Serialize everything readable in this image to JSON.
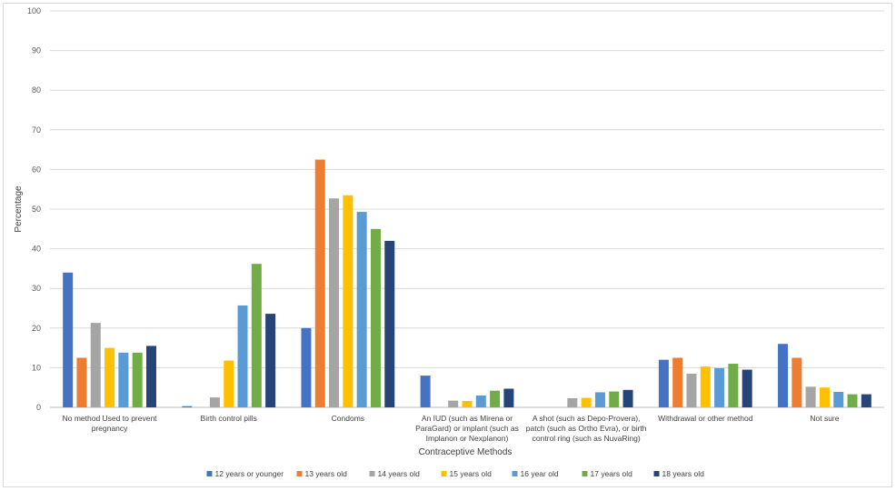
{
  "chart_data": {
    "type": "bar",
    "title": "",
    "xlabel": "Contraceptive Methods",
    "ylabel": "Percentage",
    "ylim": [
      0,
      100
    ],
    "yticks": [
      0,
      10,
      20,
      30,
      40,
      50,
      60,
      70,
      80,
      90,
      100
    ],
    "grid": true,
    "legend_position": "bottom",
    "categories": [
      [
        "No method Used to prevent",
        "pregnancy"
      ],
      [
        "Birth control pills"
      ],
      [
        "Condoms"
      ],
      [
        "An IUD (such as Mirena or",
        "ParaGard) or implant (such as",
        "Implanon or Nexplanon)"
      ],
      [
        "A shot (such as Depo-Provera),",
        "patch (such as Ortho Evra), or birth",
        "control ring (such as NuvaRing)"
      ],
      [
        "Withdrawal or other method"
      ],
      [
        "Not sure"
      ]
    ],
    "series": [
      {
        "name": "12 years or younger",
        "color": "#4472c4",
        "values": [
          34,
          0.3,
          20,
          8,
          0,
          12,
          16
        ]
      },
      {
        "name": "13 years old",
        "color": "#ed7d31",
        "values": [
          12.5,
          0,
          62.5,
          0,
          0,
          12.5,
          12.5
        ]
      },
      {
        "name": "14 years old",
        "color": "#a5a5a5",
        "values": [
          21.3,
          2.5,
          52.7,
          1.7,
          2.3,
          8.5,
          5.2
        ]
      },
      {
        "name": "15 years old",
        "color": "#ffc000",
        "values": [
          15,
          11.8,
          53.5,
          1.6,
          2.4,
          10.3,
          5
        ]
      },
      {
        "name": "16 year old",
        "color": "#5b9bd5",
        "values": [
          13.8,
          25.7,
          49.3,
          3,
          3.8,
          9.9,
          3.9
        ]
      },
      {
        "name": "17 years old",
        "color": "#70ad47",
        "values": [
          13.8,
          36.2,
          45,
          4.2,
          4,
          11,
          3.3
        ]
      },
      {
        "name": "18 years old",
        "color": "#264478",
        "values": [
          15.5,
          23.6,
          42,
          4.7,
          4.4,
          9.5,
          3.3
        ]
      }
    ]
  }
}
